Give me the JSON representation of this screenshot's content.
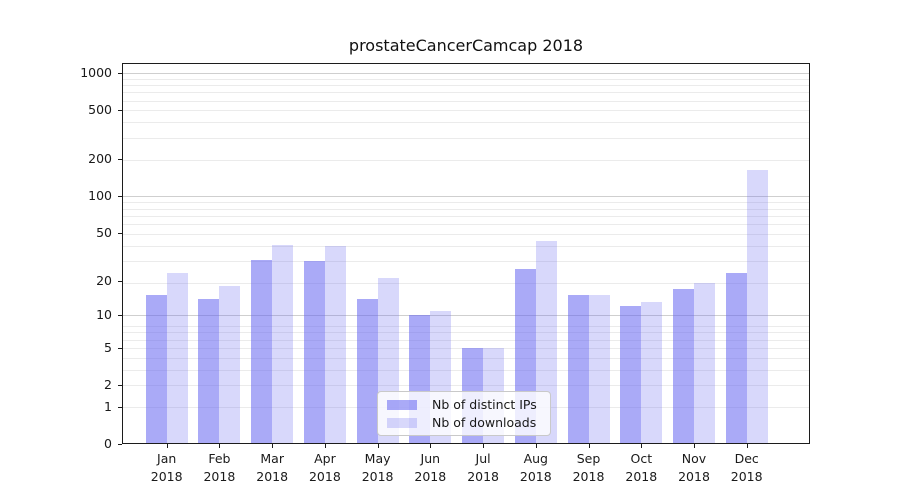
{
  "chart_data": {
    "type": "bar",
    "title": "prostateCancerCamcap 2018",
    "categories": [
      "Jan",
      "Feb",
      "Mar",
      "Apr",
      "May",
      "Jun",
      "Jul",
      "Aug",
      "Sep",
      "Oct",
      "Nov",
      "Dec"
    ],
    "category_year": "2018",
    "series": [
      {
        "name": "Nb of distinct IPs",
        "color": "rgba(100,100,240,0.55)",
        "values": [
          15,
          14,
          30,
          29,
          14,
          10,
          5,
          25,
          15,
          12,
          17,
          23
        ]
      },
      {
        "name": "Nb of downloads",
        "color": "rgba(100,100,240,0.25)",
        "values": [
          23,
          18,
          40,
          39,
          21,
          11,
          5,
          43,
          15,
          13,
          19,
          165
        ]
      }
    ],
    "yscale": "log10(value+1)",
    "ylim": [
      0,
      1000
    ],
    "yticks": [
      1000,
      500,
      200,
      100,
      50,
      20,
      10,
      5,
      2,
      1,
      0
    ],
    "ytick_labels": [
      "1000",
      "500",
      "200",
      "100",
      "50",
      "20",
      "10",
      "5",
      "2",
      "1",
      "0"
    ],
    "grid": true,
    "legend_position": "lower center"
  },
  "colors": {
    "distinct_ips_bar_on_white": "#aaaaf7",
    "downloads_bar_on_white": "#d8d8fb",
    "grid_minor": "#ebebeb",
    "grid_major": "#cfcfcf",
    "axis_line": "#1c1c1c",
    "text": "#1a1a1a",
    "background": "#ffffff"
  }
}
